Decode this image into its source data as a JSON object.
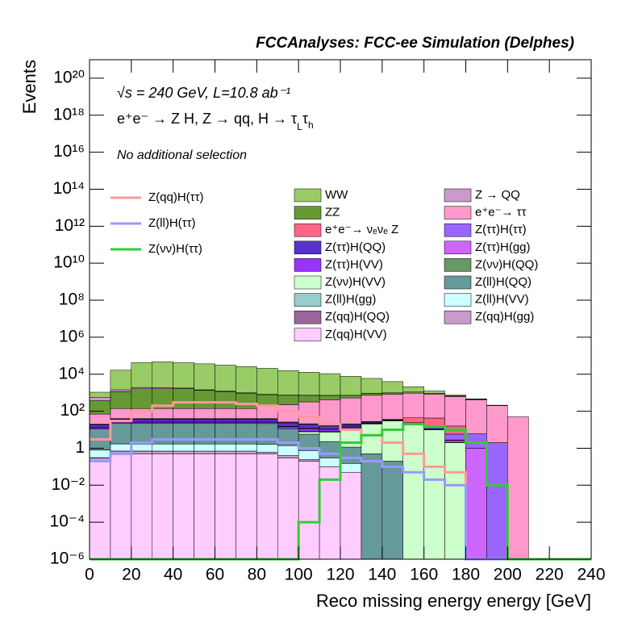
{
  "chart_data": {
    "type": "histogram",
    "title": "FCCAnalyses: FCC-ee Simulation (Delphes)",
    "annotations": [
      "√s = 240 GeV, L=10.8 ab⁻¹",
      "No additional selection"
    ],
    "process": [
      "e⁺e⁻ → Z H, Z  → qq, H  → τ",
      "L",
      "τ",
      "h"
    ],
    "x_label": "Reco missing energy energy [GeV]",
    "y_label": "Events",
    "log_y": true,
    "stacked": true,
    "xlim": [
      0,
      240
    ],
    "ylim": [
      1e-06,
      1e+21
    ],
    "xticks": [
      0,
      20,
      40,
      60,
      80,
      100,
      120,
      140,
      160,
      180,
      200,
      220,
      240
    ],
    "yticks": [
      {
        "value": 1e-06,
        "label": "10⁻⁶"
      },
      {
        "value": 0.0001,
        "label": "10⁻⁴"
      },
      {
        "value": 0.01,
        "label": "10⁻²"
      },
      1,
      {
        "value": 100,
        "label": "10²"
      },
      {
        "value": 10000,
        "label": "10⁴"
      },
      {
        "value": 1000000.0,
        "label": "10⁶"
      },
      {
        "value": 100000000.0,
        "label": "10⁸"
      },
      {
        "value": 10000000000.0,
        "label": "10¹⁰"
      },
      {
        "value": 1000000000000.0,
        "label": "10¹²"
      },
      {
        "value": 100000000000000.0,
        "label": "10¹⁴"
      },
      {
        "value": 1e+16,
        "label": "10¹⁶"
      },
      {
        "value": 1e+18,
        "label": "10¹⁸"
      },
      {
        "value": 1e+20,
        "label": "10²⁰"
      }
    ],
    "bins": [
      0,
      10,
      20,
      30,
      40,
      50,
      60,
      70,
      80,
      90,
      100,
      110,
      120,
      130,
      140,
      150,
      160,
      170,
      180,
      190,
      200,
      210,
      220,
      230,
      240
    ],
    "series": [
      {
        "name": "WW",
        "color": "#99cc66",
        "values": [
          500,
          15000,
          40000,
          45000,
          40000,
          35000,
          30000,
          25000,
          20000,
          15000,
          12000,
          10000,
          7000,
          5000,
          3000,
          1000,
          300,
          50,
          5,
          0,
          0,
          0,
          0,
          0
        ]
      },
      {
        "name": "Z → QQ",
        "color": "#cc99cc",
        "values": [
          200,
          300,
          300,
          200,
          150,
          100,
          80,
          50,
          30,
          20,
          10,
          5,
          2,
          1,
          0.5,
          0.2,
          0.1,
          0.05,
          5,
          0,
          0,
          0,
          0,
          0
        ]
      },
      {
        "name": "ZZ",
        "color": "#669933",
        "values": [
          300,
          1000,
          1500,
          1500,
          1500,
          1200,
          1000,
          800,
          600,
          500,
          400,
          300,
          200,
          200,
          150,
          150,
          100,
          80,
          50,
          10,
          0,
          0,
          0,
          0
        ]
      },
      {
        "name": "e⁺e⁻→ ττ",
        "color": "#ff99cc",
        "values": [
          50,
          100,
          100,
          100,
          100,
          100,
          100,
          100,
          150,
          200,
          300,
          400,
          500,
          700,
          800,
          900,
          800,
          600,
          400,
          200,
          50,
          0,
          0,
          0
        ]
      },
      {
        "name": "e⁺e⁻→ νₑνₑ Z",
        "color": "#ff6688",
        "values": [
          0.5,
          1,
          1,
          1,
          1,
          1,
          1,
          1,
          1,
          1,
          1,
          1,
          1,
          1,
          1,
          20,
          30,
          10,
          0,
          0,
          0,
          0,
          0,
          0
        ]
      },
      {
        "name": "Z(ττ)H(ττ)",
        "color": "#9966ff",
        "values": [
          1,
          2,
          2,
          2,
          2,
          2,
          2,
          2,
          2,
          2,
          2,
          2,
          2,
          2,
          2,
          2,
          2,
          3,
          5,
          2,
          0,
          0,
          0,
          0
        ]
      },
      {
        "name": "Z(ττ)H(QQ)",
        "color": "#5533cc",
        "values": [
          5,
          10,
          10,
          10,
          10,
          10,
          10,
          10,
          10,
          8,
          6,
          4,
          3,
          2,
          1,
          1,
          0.5,
          0.2,
          0,
          0,
          0,
          0,
          0,
          0
        ]
      },
      {
        "name": "Z(ττ)H(gg)",
        "color": "#cc66ff",
        "values": [
          0.5,
          1,
          1,
          1,
          1,
          1,
          1,
          1,
          1,
          0.8,
          0.6,
          0.4,
          0.3,
          0.2,
          0.1,
          0.1,
          0.1,
          0.5,
          1,
          0,
          0,
          0,
          0,
          0
        ]
      },
      {
        "name": "Z(ττ)H(VV)",
        "color": "#9933ff",
        "values": [
          2,
          4,
          4,
          4,
          4,
          4,
          4,
          4,
          4,
          3,
          3,
          2,
          2,
          1,
          1,
          0.5,
          0.3,
          0.1,
          0,
          0,
          0,
          0,
          0,
          0
        ]
      },
      {
        "name": "Z(νν)H(QQ)",
        "color": "#669966",
        "values": [
          0,
          0,
          0,
          0,
          0,
          0,
          0,
          0,
          0,
          0,
          0.5,
          1,
          1,
          1,
          1,
          0.5,
          0.1,
          0,
          0,
          0,
          0,
          0,
          0,
          0
        ]
      },
      {
        "name": "Z(νν)H(VV)",
        "color": "#ccffcc",
        "values": [
          0,
          0,
          0,
          0,
          0,
          0,
          0,
          0,
          0,
          0,
          2,
          5,
          10,
          20,
          30,
          20,
          10,
          2,
          0,
          0,
          0,
          0,
          0,
          0
        ]
      },
      {
        "name": "Z(ll)H(QQ)",
        "color": "#669999",
        "values": [
          10,
          20,
          20,
          20,
          20,
          20,
          20,
          20,
          20,
          10,
          5,
          2,
          1,
          0.5,
          0.2,
          0,
          0,
          0,
          0,
          0,
          0,
          0,
          0,
          0
        ]
      },
      {
        "name": "Z(ll)H(gg)",
        "color": "#99cccc",
        "values": [
          0.01,
          0.02,
          0.02,
          0.01,
          0.01,
          0.01,
          0.01,
          0.01,
          0.01,
          0.01,
          0,
          0,
          0,
          0,
          0,
          0,
          0,
          0,
          0,
          0,
          0,
          0,
          0,
          0
        ]
      },
      {
        "name": "Z(ll)H(VV)",
        "color": "#ccffff",
        "values": [
          0.5,
          1,
          1,
          1,
          1,
          1,
          1,
          1,
          1,
          1,
          0.5,
          0.2,
          0.1,
          0,
          0,
          0,
          0,
          0,
          0,
          0,
          0,
          0,
          0,
          0
        ]
      },
      {
        "name": "Z(qq)H(QQ)",
        "color": "#996699",
        "values": [
          0.01,
          0.005,
          0.005,
          0.0001,
          0,
          0,
          0,
          0,
          0,
          0,
          0,
          0,
          0,
          0,
          0,
          0,
          0,
          0,
          0,
          0,
          0,
          0,
          0,
          0
        ]
      },
      {
        "name": "Z(qq)H(gg)",
        "color": "#cc99cc",
        "values": [
          0.1,
          0.2,
          0.2,
          0.2,
          0.2,
          0.2,
          0.2,
          0.2,
          0.1,
          0.1,
          0.05,
          0,
          0,
          0,
          0,
          0,
          0,
          0,
          0,
          0,
          0,
          0,
          0,
          0
        ]
      },
      {
        "name": "Z(qq)H(VV)",
        "color": "#ffccff",
        "values": [
          0.2,
          0.5,
          0.5,
          0.5,
          0.5,
          0.5,
          0.5,
          0.5,
          0.5,
          0.3,
          0.2,
          0.1,
          0.05,
          0,
          0,
          0,
          0,
          0,
          0,
          0,
          0,
          0,
          0,
          0
        ]
      }
    ],
    "overlay_series": [
      {
        "name": "Z(qq)H(ττ)",
        "color": "#ff9999",
        "values": [
          3,
          30,
          100,
          200,
          300,
          300,
          300,
          250,
          200,
          100,
          50,
          20,
          10,
          5,
          2,
          0.5,
          0.1,
          0.05,
          0,
          0,
          0,
          0,
          0,
          0
        ]
      },
      {
        "name": "Z(ll)H(ττ)",
        "color": "#9999ff",
        "values": [
          0.2,
          0.5,
          2,
          3,
          3,
          3,
          3,
          3,
          3,
          2,
          1,
          0.5,
          0.3,
          0.2,
          0.1,
          0.05,
          0.02,
          0.01,
          0,
          0,
          0,
          0,
          0,
          0
        ]
      },
      {
        "name": "Z(νν)H(ττ)",
        "color": "#33cc33",
        "values": [
          0,
          0,
          0,
          0,
          0,
          0,
          0,
          0,
          0,
          0,
          0.0001,
          0.02,
          2,
          5,
          10,
          20,
          15,
          10,
          2,
          0.01,
          0,
          0,
          0,
          0
        ]
      }
    ]
  }
}
